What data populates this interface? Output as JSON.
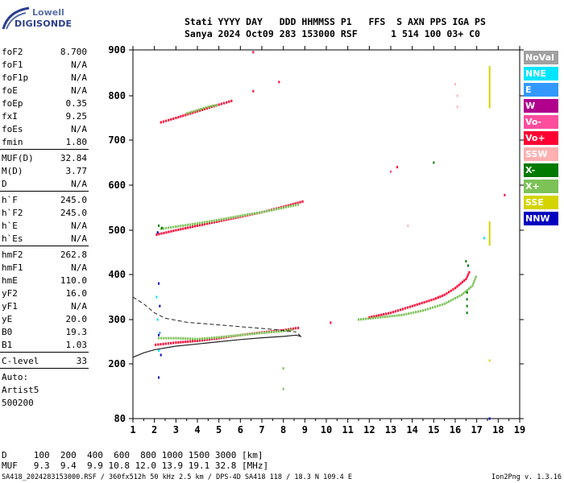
{
  "logo": {
    "line1": "Lowell",
    "line2": "DIGISONDE"
  },
  "header": {
    "line1": "Stati YYYY DAY   DDD HHMMSS P1   FFS  S AXN PPS IGA PS",
    "line2": "Sanya 2024 Oct09 283 153000 RSF      1 514 100 03+ C0"
  },
  "params": [
    {
      "k": "foF2",
      "v": "8.700"
    },
    {
      "k": "foF1",
      "v": "N/A"
    },
    {
      "k": "foF1p",
      "v": "N/A"
    },
    {
      "k": "foE",
      "v": "N/A"
    },
    {
      "k": "foEp",
      "v": "0.35"
    },
    {
      "k": "fxI",
      "v": "9.25"
    },
    {
      "k": "foEs",
      "v": "N/A"
    },
    {
      "k": "fmin",
      "v": "1.80"
    },
    {
      "k": "MUF(D)",
      "v": "32.84"
    },
    {
      "k": "M(D)",
      "v": "3.77"
    },
    {
      "k": "D",
      "v": "N/A"
    },
    {
      "k": "h`F",
      "v": "245.0"
    },
    {
      "k": "h`F2",
      "v": "245.0"
    },
    {
      "k": "h`E",
      "v": "N/A"
    },
    {
      "k": "h`Es",
      "v": "N/A"
    },
    {
      "k": "hmF2",
      "v": "262.8"
    },
    {
      "k": "hmF1",
      "v": "N/A"
    },
    {
      "k": "hmE",
      "v": "110.0"
    },
    {
      "k": "yF2",
      "v": "16.0"
    },
    {
      "k": "yF1",
      "v": "N/A"
    },
    {
      "k": "yE",
      "v": "20.0"
    },
    {
      "k": "B0",
      "v": "19.3"
    },
    {
      "k": "B1",
      "v": "1.03"
    },
    {
      "k": "C-level",
      "v": "33"
    }
  ],
  "auto": [
    "Auto:",
    "Artist5",
    "500200"
  ],
  "legend": [
    {
      "label": "NoVal",
      "color": "#a0a0a0"
    },
    {
      "label": "NNE",
      "color": "#00e5ff"
    },
    {
      "label": "E",
      "color": "#3399ff"
    },
    {
      "label": "W",
      "color": "#b0008c"
    },
    {
      "label": "Vo-",
      "color": "#ff4d9e"
    },
    {
      "label": "Vo+",
      "color": "#ff0033"
    },
    {
      "label": "SSW",
      "color": "#ffb0b0"
    },
    {
      "label": "X-",
      "color": "#007a00"
    },
    {
      "label": "X+",
      "color": "#7cc257"
    },
    {
      "label": "SSE",
      "color": "#d4d400"
    },
    {
      "label": "NNW",
      "color": "#0000c0"
    }
  ],
  "footer": {
    "row1": "D     100  200  400  600  800 1000 1500 3000 [km]",
    "row2": "MUF   9.3  9.4  9.9 10.8 12.0 13.9 19.1 32.8 [MHz]",
    "left": "SA418_2024283153000.RSF / 360fx512h 50 kHz 2.5 km / DPS-4D SA418 118 / 18.3 N 109.4 E",
    "right": "Ion2Png v. 1.3.16"
  },
  "chart_data": {
    "type": "scatter",
    "xlim": [
      1,
      19
    ],
    "ylim": [
      80,
      900
    ],
    "xticks": [
      "1",
      "2",
      "3",
      "4",
      "5",
      "6",
      "7",
      "8",
      "9",
      "10",
      "11",
      "12",
      "13",
      "14",
      "15",
      "16",
      "17",
      "18",
      "19"
    ],
    "yticks": [
      {
        "label": "900",
        "value": 900
      },
      {
        "label": "800",
        "value": 800
      },
      {
        "label": "700",
        "value": 700
      },
      {
        "label": "600",
        "value": 600
      },
      {
        "label": "500",
        "value": 500
      },
      {
        "label": "400",
        "value": 400
      },
      {
        "label": "300",
        "value": 300
      },
      {
        "label": "200",
        "value": 200
      },
      {
        "label": "80",
        "value": 80
      }
    ],
    "grid": false,
    "traces": [
      {
        "color": "#ff0033",
        "points": [
          [
            2.05,
            243
          ],
          [
            3.0,
            248
          ],
          [
            4.0,
            252
          ],
          [
            5.0,
            258
          ],
          [
            6.0,
            265
          ],
          [
            7.0,
            271
          ],
          [
            8.0,
            276
          ],
          [
            8.8,
            282
          ]
        ]
      },
      {
        "color": "#7cc257",
        "points": [
          [
            2.2,
            258
          ],
          [
            3.0,
            258
          ],
          [
            4.0,
            256
          ],
          [
            5.0,
            260
          ],
          [
            6.0,
            265
          ],
          [
            7.0,
            270
          ],
          [
            8.0,
            274
          ],
          [
            8.5,
            278
          ]
        ]
      },
      {
        "color": "#ff0033",
        "points": [
          [
            2.1,
            490
          ],
          [
            3.0,
            500
          ],
          [
            4.0,
            510
          ],
          [
            5.0,
            520
          ],
          [
            6.0,
            530
          ],
          [
            7.0,
            540
          ],
          [
            8.0,
            552
          ],
          [
            9.0,
            565
          ]
        ]
      },
      {
        "color": "#7cc257",
        "points": [
          [
            2.3,
            503
          ],
          [
            3.0,
            508
          ],
          [
            4.0,
            515
          ],
          [
            5.0,
            523
          ],
          [
            6.0,
            532
          ],
          [
            7.0,
            540
          ],
          [
            8.0,
            550
          ],
          [
            8.8,
            558
          ]
        ]
      },
      {
        "color": "#ff0033",
        "points": [
          [
            2.3,
            740
          ],
          [
            3.0,
            750
          ],
          [
            4.0,
            765
          ],
          [
            5.0,
            780
          ],
          [
            5.7,
            790
          ]
        ]
      },
      {
        "color": "#7cc257",
        "points": [
          [
            3.5,
            760
          ],
          [
            4.5,
            775
          ],
          [
            5.0,
            780
          ]
        ]
      },
      {
        "color": "#ff0033",
        "points": [
          [
            12.0,
            305
          ],
          [
            13.0,
            315
          ],
          [
            14.0,
            330
          ],
          [
            15.0,
            345
          ],
          [
            15.5,
            355
          ],
          [
            16.0,
            370
          ],
          [
            16.5,
            390
          ],
          [
            16.7,
            410
          ]
        ]
      },
      {
        "color": "#7cc257",
        "points": [
          [
            11.5,
            300
          ],
          [
            12.5,
            305
          ],
          [
            13.5,
            310
          ],
          [
            14.5,
            320
          ],
          [
            15.5,
            335
          ],
          [
            16.3,
            355
          ],
          [
            16.8,
            375
          ],
          [
            17.0,
            400
          ]
        ]
      }
    ],
    "scatter_points": [
      {
        "color": "#007a00",
        "x": 2.2,
        "y": 510
      },
      {
        "color": "#007a00",
        "x": 2.35,
        "y": 505
      },
      {
        "color": "#0000c0",
        "x": 2.15,
        "y": 495
      },
      {
        "color": "#0000c0",
        "x": 2.2,
        "y": 380
      },
      {
        "color": "#0000c0",
        "x": 2.25,
        "y": 330
      },
      {
        "color": "#0000c0",
        "x": 2.2,
        "y": 265
      },
      {
        "color": "#0000c0",
        "x": 2.3,
        "y": 220
      },
      {
        "color": "#0000c0",
        "x": 2.2,
        "y": 170
      },
      {
        "color": "#00e5ff",
        "x": 2.1,
        "y": 350
      },
      {
        "color": "#00e5ff",
        "x": 2.15,
        "y": 300
      },
      {
        "color": "#00e5ff",
        "x": 2.2,
        "y": 230
      },
      {
        "color": "#3399ff",
        "x": 2.25,
        "y": 270
      },
      {
        "color": "#ff0033",
        "x": 6.6,
        "y": 895
      },
      {
        "color": "#ff0033",
        "x": 7.8,
        "y": 830
      },
      {
        "color": "#ff0033",
        "x": 6.6,
        "y": 810
      },
      {
        "color": "#ff0033",
        "x": 13.3,
        "y": 640
      },
      {
        "color": "#ff4d9e",
        "x": 13.0,
        "y": 630
      },
      {
        "color": "#ff0033",
        "x": 10.2,
        "y": 293
      },
      {
        "color": "#7cc257",
        "x": 8.0,
        "y": 190
      },
      {
        "color": "#7cc257",
        "x": 8.0,
        "y": 145
      },
      {
        "color": "#ffb0b0",
        "x": 16.1,
        "y": 800
      },
      {
        "color": "#ffb0b0",
        "x": 16.0,
        "y": 825
      },
      {
        "color": "#ffb0b0",
        "x": 16.1,
        "y": 775
      },
      {
        "color": "#007a00",
        "x": 16.5,
        "y": 430
      },
      {
        "color": "#007a00",
        "x": 16.6,
        "y": 420
      },
      {
        "color": "#007a00",
        "x": 16.55,
        "y": 360
      },
      {
        "color": "#007a00",
        "x": 16.55,
        "y": 345
      },
      {
        "color": "#007a00",
        "x": 16.55,
        "y": 330
      },
      {
        "color": "#007a00",
        "x": 16.55,
        "y": 315
      },
      {
        "color": "#ff0033",
        "x": 18.3,
        "y": 578
      },
      {
        "color": "#00e5ff",
        "x": 17.35,
        "y": 482
      },
      {
        "color": "#0000c0",
        "x": 17.6,
        "y": 80
      },
      {
        "color": "#007a00",
        "x": 15.0,
        "y": 650
      },
      {
        "color": "#ffb0b0",
        "x": 13.8,
        "y": 510
      }
    ],
    "sse_bars": [
      {
        "x": 17.6,
        "y_from": 772,
        "y_to": 865
      },
      {
        "x": 17.6,
        "y_from": 465,
        "y_to": 520
      },
      {
        "x": 17.6,
        "y_from": 205,
        "y_to": 210
      }
    ],
    "profile_solid": [
      [
        1.0,
        215
      ],
      [
        1.5,
        225
      ],
      [
        2.0,
        232
      ],
      [
        3.0,
        240
      ],
      [
        4.0,
        245
      ],
      [
        5.0,
        250
      ],
      [
        6.0,
        255
      ],
      [
        7.0,
        259
      ],
      [
        8.0,
        262
      ],
      [
        8.6,
        265
      ],
      [
        8.8,
        262
      ],
      [
        8.7,
        268
      ]
    ],
    "profile_dashed": [
      [
        1.0,
        350
      ],
      [
        1.5,
        335
      ],
      [
        2.0,
        315
      ],
      [
        2.5,
        303
      ],
      [
        3.5,
        294
      ],
      [
        4.5,
        290
      ],
      [
        5.5,
        286
      ],
      [
        6.5,
        282
      ],
      [
        7.5,
        278
      ],
      [
        8.6,
        272
      ]
    ]
  }
}
